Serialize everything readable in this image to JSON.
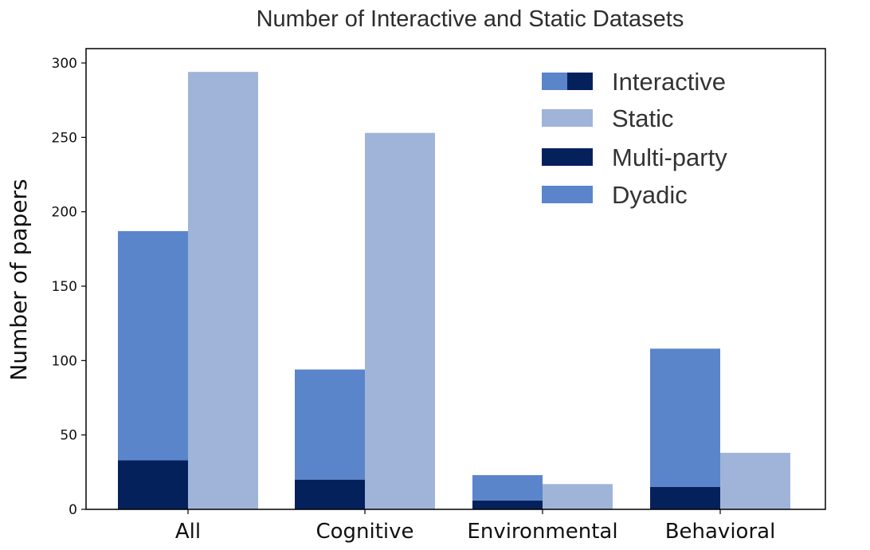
{
  "chart_data": {
    "type": "bar",
    "title": "Number of Interactive and Static Datasets",
    "xlabel": "",
    "ylabel": "Number of papers",
    "ylim": [
      0,
      310
    ],
    "yticks": [
      0,
      50,
      100,
      150,
      200,
      250,
      300
    ],
    "categories": [
      "All",
      "Cognitive",
      "Environmental",
      "Behavioral"
    ],
    "interactive": {
      "name": "Interactive",
      "components": [
        {
          "name": "Multi-party",
          "color": "#05215c",
          "values": [
            33,
            20,
            6,
            15
          ]
        },
        {
          "name": "Dyadic",
          "color": "#5a85cb",
          "values": [
            154,
            74,
            17,
            93
          ]
        }
      ],
      "totals": [
        187,
        94,
        23,
        108
      ]
    },
    "static": {
      "name": "Static",
      "color": "#9fb4d8",
      "values": [
        294,
        253,
        17,
        38
      ]
    },
    "legend": {
      "position": "top-right",
      "entries": [
        {
          "label": "Interactive",
          "colors": [
            "#5a85cb",
            "#05215c"
          ]
        },
        {
          "label": "Static",
          "colors": [
            "#9fb4d8"
          ]
        },
        {
          "label": "Multi-party",
          "colors": [
            "#05215c"
          ]
        },
        {
          "label": "Dyadic",
          "colors": [
            "#5a85cb"
          ]
        }
      ]
    },
    "grid": false
  }
}
